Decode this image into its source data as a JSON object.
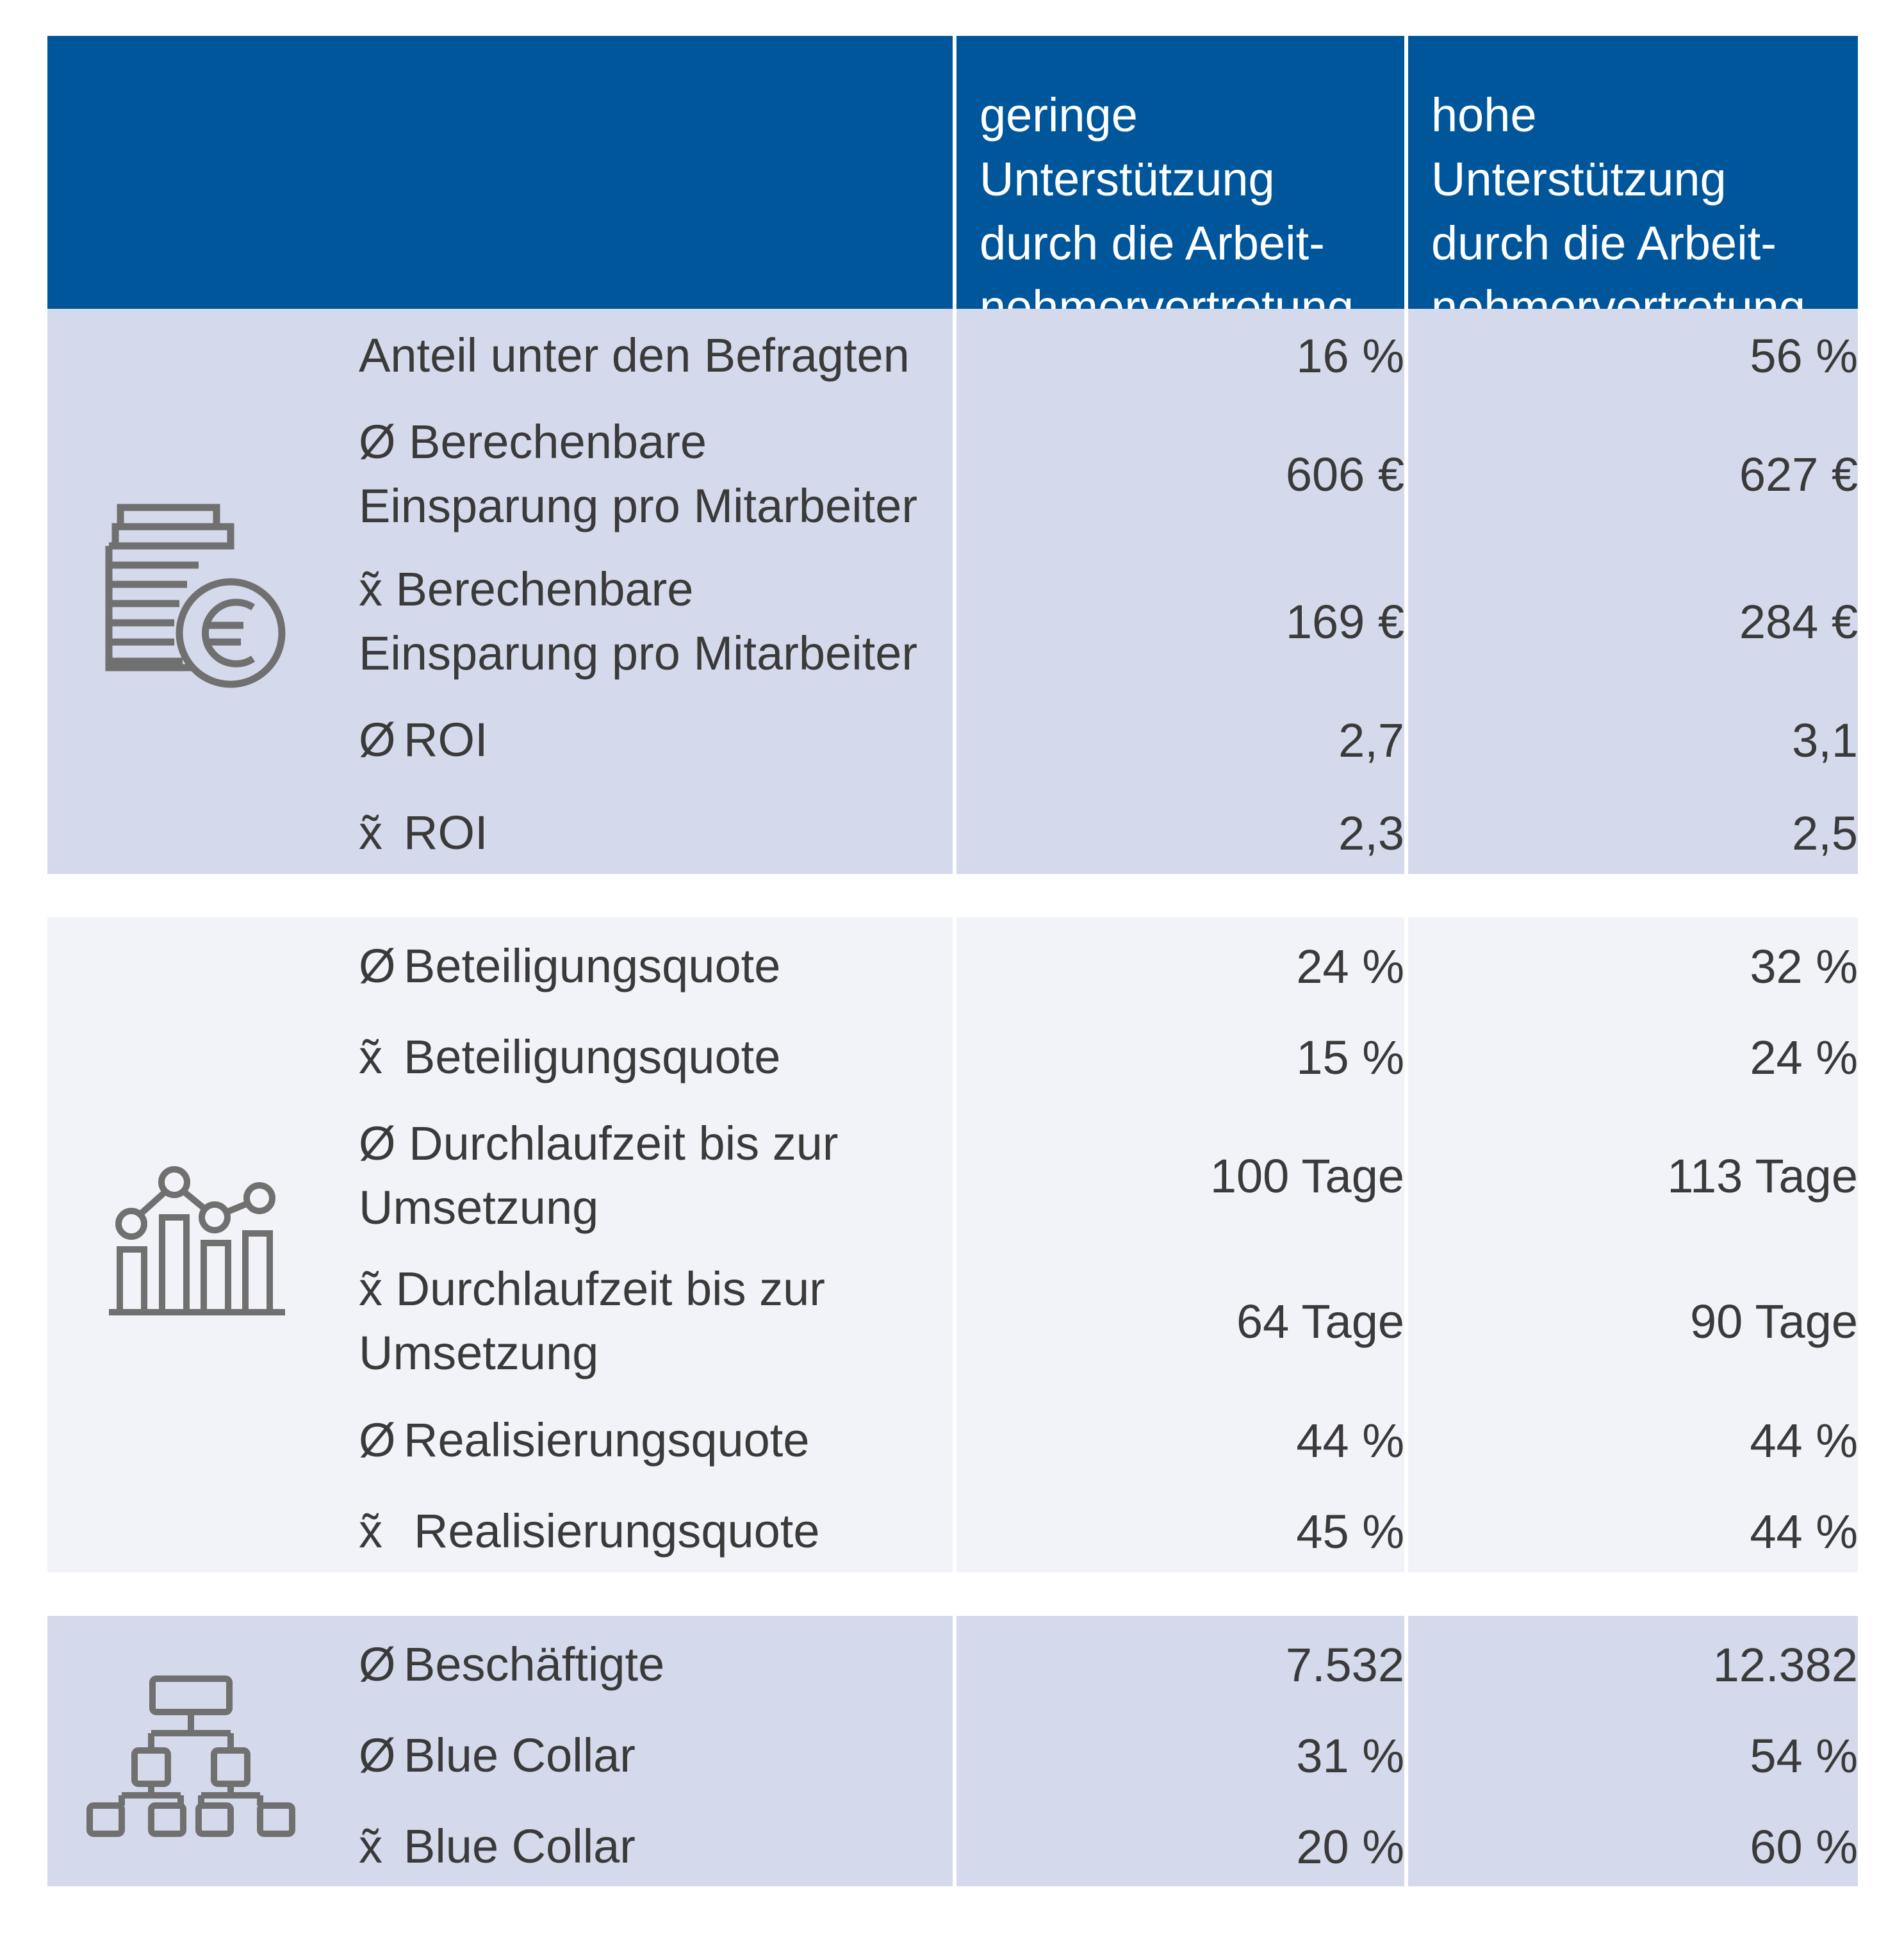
{
  "header": {
    "col1": "geringe\nUnterstützung\ndurch die Arbeit-\nnehmervertretung",
    "col2": "hohe\nUnterstützung\ndurch die Arbeit-\nnehmervertretung"
  },
  "colors": {
    "header": "#00569b",
    "band_dark": "#d4d9eb",
    "band_light": "#f1f3f9",
    "icon": "#707070"
  },
  "groups": [
    {
      "icon": "coins-euro-icon",
      "rows": [
        {
          "sym": "",
          "label": "Anteil unter den Befragten",
          "v1": "16 %",
          "v2": "56 %"
        },
        {
          "sym": "Ø",
          "label": "Berechenbare\nEinsparung pro Mitarbeiter",
          "v1": "606  €",
          "v2": "627  €"
        },
        {
          "sym": "x̃",
          "label": "Berechenbare\nEinsparung pro Mitarbeiter",
          "v1": "169  €",
          "v2": "284  €"
        },
        {
          "sym": "Ø",
          "label": "ROI",
          "v1": "2,7",
          "v2": "3,1"
        },
        {
          "sym": "x̃",
          "label": "ROI",
          "v1": "2,3",
          "v2": "2,5"
        }
      ]
    },
    {
      "icon": "bar-line-chart-icon",
      "rows": [
        {
          "sym": "Ø",
          "label": "Beteiligungsquote",
          "v1": "24 %",
          "v2": "32 %"
        },
        {
          "sym": "x̃",
          "label": "Beteiligungsquote",
          "v1": "15 %",
          "v2": "24 %"
        },
        {
          "sym": "Ø",
          "label": "Durchlaufzeit bis zur\nUmsetzung",
          "v1": "100 Tage",
          "v2": "113 Tage"
        },
        {
          "sym": "x̃",
          "label": "Durchlaufzeit bis zur\nUmsetzung",
          "v1": "64 Tage",
          "v2": "90 Tage"
        },
        {
          "sym": "Ø",
          "label": "Realisierungsquote",
          "v1": "44 %",
          "v2": "44 %"
        },
        {
          "sym": "x̃",
          "label": "Realisierungsquote",
          "v1": "45 %",
          "v2": "44 %"
        }
      ]
    },
    {
      "icon": "org-chart-icon",
      "rows": [
        {
          "sym": "Ø",
          "label": "Beschäftigte",
          "v1": "7.532",
          "v2": "12.382"
        },
        {
          "sym": "Ø",
          "label": "Blue Collar",
          "v1": "31 %",
          "v2": "54 %"
        },
        {
          "sym": "x̃",
          "label": "Blue Collar",
          "v1": "20 %",
          "v2": "60 %"
        }
      ]
    }
  ]
}
